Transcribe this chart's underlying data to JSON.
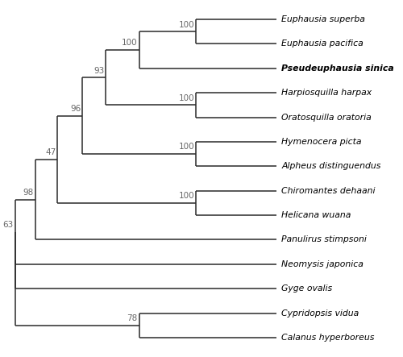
{
  "taxa": [
    "Euphausia superba",
    "Euphausia pacifica",
    "Pseudeuphausia sinica",
    "Harpiosquilla harpax",
    "Oratosquilla oratoria",
    "Hymenocera picta",
    "Alpheus distinguendus",
    "Chiromantes dehaani",
    "Helicana wuana",
    "Panulirus stimpsoni",
    "Neomysis japonica",
    "Gyge ovalis",
    "Cypridopsis vidua",
    "Calanus hyperboreus"
  ],
  "bold_taxa": [
    "Pseudeuphausia sinica"
  ],
  "line_color": "#2a2a2a",
  "background_color": "#ffffff",
  "font_size": 7.8,
  "bootstrap_font_size": 7.5,
  "bootstrap_color": "#666666"
}
